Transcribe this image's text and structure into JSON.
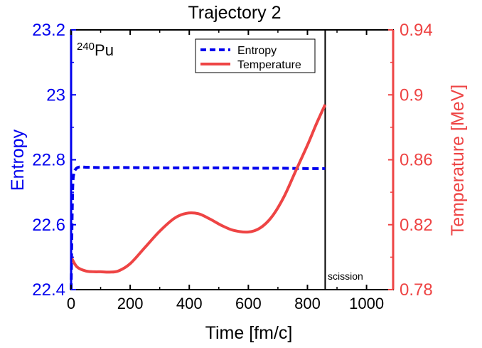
{
  "chart_data": {
    "type": "line",
    "title": "Trajectory 2",
    "xlabel": "Time [fm/c]",
    "xlim": [
      0,
      1090
    ],
    "xticks": [
      0,
      200,
      400,
      600,
      800,
      1000
    ],
    "xtick_labels": [
      "0",
      "200",
      "400",
      "600",
      "800",
      "1000"
    ],
    "y_left": {
      "label": "Entropy",
      "lim": [
        22.4,
        23.2
      ],
      "ticks": [
        22.4,
        22.6,
        22.8,
        23.0,
        23.2
      ],
      "tick_labels": [
        "22.4",
        "22.6",
        "22.8",
        "23",
        "23.2"
      ],
      "color": "#0000ee"
    },
    "y_right": {
      "label": "Temperature [MeV]",
      "lim": [
        0.78,
        0.94
      ],
      "ticks": [
        0.78,
        0.82,
        0.86,
        0.9,
        0.94
      ],
      "tick_labels": [
        "0.78",
        "0.82",
        "0.86",
        "0.9",
        "0.94"
      ],
      "color": "#ee4444"
    },
    "annotation": {
      "base": "Pu",
      "superscript": "240"
    },
    "vline": {
      "x": 860,
      "label": "scission"
    },
    "legend": {
      "placement": "top-right",
      "entries": [
        "Entropy",
        "Temperature"
      ]
    },
    "grid": false,
    "series": [
      {
        "name": "Entropy",
        "axis": "left",
        "style": "dashed",
        "color": "#0000ee",
        "x": [
          0,
          5,
          10,
          15,
          20,
          30,
          50,
          100,
          200,
          300,
          400,
          500,
          600,
          700,
          800,
          860
        ],
        "y": [
          22.4,
          22.7,
          22.76,
          22.77,
          22.775,
          22.778,
          22.777,
          22.776,
          22.776,
          22.775,
          22.775,
          22.775,
          22.774,
          22.774,
          22.773,
          22.773
        ]
      },
      {
        "name": "Temperature",
        "axis": "right",
        "style": "solid",
        "color": "#ee4444",
        "x": [
          0,
          20,
          50,
          80,
          100,
          130,
          160,
          200,
          250,
          300,
          350,
          390,
          430,
          470,
          510,
          550,
          600,
          640,
          680,
          720,
          760,
          800,
          830,
          860
        ],
        "y": [
          0.8,
          0.794,
          0.7915,
          0.791,
          0.791,
          0.7908,
          0.7915,
          0.796,
          0.806,
          0.816,
          0.824,
          0.827,
          0.8268,
          0.8235,
          0.8195,
          0.8165,
          0.8155,
          0.818,
          0.825,
          0.837,
          0.853,
          0.869,
          0.882,
          0.894
        ]
      }
    ]
  }
}
